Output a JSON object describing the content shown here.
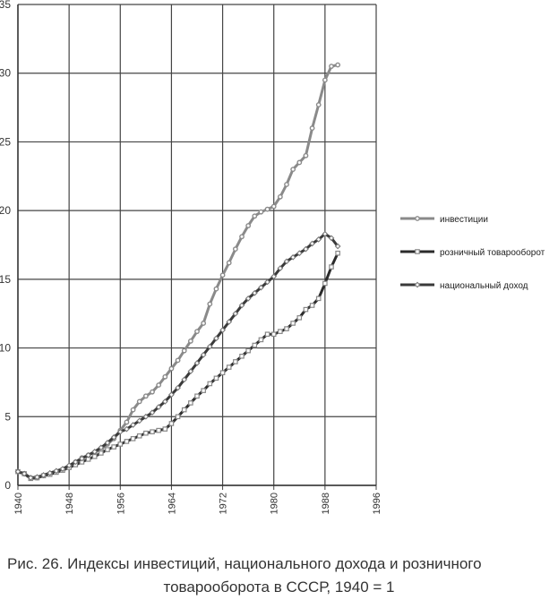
{
  "chart_data": {
    "type": "line",
    "title": "",
    "xlabel": "",
    "ylabel": "",
    "xlim": [
      1940,
      1996
    ],
    "ylim": [
      0,
      35
    ],
    "x_ticks": [
      1940,
      1948,
      1956,
      1964,
      1972,
      1980,
      1988,
      1996
    ],
    "y_ticks": [
      0,
      5,
      10,
      15,
      20,
      25,
      30,
      35
    ],
    "grid": true,
    "legend_position": "right",
    "series": [
      {
        "name": "инвестиции",
        "color": "#8a8a8a",
        "marker": "circle",
        "points": [
          [
            1940,
            1.0
          ],
          [
            1941,
            0.85
          ],
          [
            1942,
            0.55
          ],
          [
            1943,
            0.55
          ],
          [
            1944,
            0.7
          ],
          [
            1945,
            0.85
          ],
          [
            1946,
            1.0
          ],
          [
            1947,
            1.15
          ],
          [
            1948,
            1.4
          ],
          [
            1949,
            1.7
          ],
          [
            1950,
            2.0
          ],
          [
            1951,
            2.2
          ],
          [
            1952,
            2.4
          ],
          [
            1953,
            2.6
          ],
          [
            1954,
            3.0
          ],
          [
            1955,
            3.4
          ],
          [
            1956,
            4.0
          ],
          [
            1957,
            4.6
          ],
          [
            1958,
            5.5
          ],
          [
            1959,
            6.1
          ],
          [
            1960,
            6.5
          ],
          [
            1961,
            6.8
          ],
          [
            1962,
            7.3
          ],
          [
            1963,
            7.9
          ],
          [
            1964,
            8.5
          ],
          [
            1965,
            9.1
          ],
          [
            1966,
            9.8
          ],
          [
            1967,
            10.5
          ],
          [
            1968,
            11.2
          ],
          [
            1969,
            11.8
          ],
          [
            1970,
            13.2
          ],
          [
            1971,
            14.3
          ],
          [
            1972,
            15.3
          ],
          [
            1973,
            16.2
          ],
          [
            1974,
            17.2
          ],
          [
            1975,
            18.1
          ],
          [
            1976,
            18.9
          ],
          [
            1977,
            19.6
          ],
          [
            1978,
            19.9
          ],
          [
            1979,
            20.1
          ],
          [
            1980,
            20.3
          ],
          [
            1981,
            21.0
          ],
          [
            1982,
            21.9
          ],
          [
            1983,
            23.0
          ],
          [
            1984,
            23.5
          ],
          [
            1985,
            24.0
          ],
          [
            1986,
            26.0
          ],
          [
            1987,
            27.7
          ],
          [
            1988,
            29.5
          ],
          [
            1989,
            30.5
          ],
          [
            1990,
            30.6
          ]
        ]
      },
      {
        "name": "розничный товарооборот",
        "color": "#2b2b2b",
        "marker": "square",
        "points": [
          [
            1940,
            1.0
          ],
          [
            1941,
            0.85
          ],
          [
            1942,
            0.5
          ],
          [
            1943,
            0.55
          ],
          [
            1944,
            0.7
          ],
          [
            1945,
            0.8
          ],
          [
            1946,
            0.95
          ],
          [
            1947,
            1.1
          ],
          [
            1948,
            1.3
          ],
          [
            1949,
            1.5
          ],
          [
            1950,
            1.7
          ],
          [
            1951,
            1.9
          ],
          [
            1952,
            2.1
          ],
          [
            1953,
            2.35
          ],
          [
            1954,
            2.6
          ],
          [
            1955,
            2.8
          ],
          [
            1956,
            3.0
          ],
          [
            1957,
            3.2
          ],
          [
            1958,
            3.4
          ],
          [
            1959,
            3.6
          ],
          [
            1960,
            3.8
          ],
          [
            1961,
            3.9
          ],
          [
            1962,
            4.0
          ],
          [
            1963,
            4.1
          ],
          [
            1964,
            4.5
          ],
          [
            1965,
            5.0
          ],
          [
            1966,
            5.5
          ],
          [
            1967,
            6.0
          ],
          [
            1968,
            6.5
          ],
          [
            1969,
            6.9
          ],
          [
            1970,
            7.4
          ],
          [
            1971,
            7.8
          ],
          [
            1972,
            8.2
          ],
          [
            1973,
            8.6
          ],
          [
            1974,
            9.0
          ],
          [
            1975,
            9.4
          ],
          [
            1976,
            9.8
          ],
          [
            1977,
            10.2
          ],
          [
            1978,
            10.6
          ],
          [
            1979,
            11.0
          ],
          [
            1980,
            11.0
          ],
          [
            1981,
            11.2
          ],
          [
            1982,
            11.4
          ],
          [
            1983,
            11.8
          ],
          [
            1984,
            12.2
          ],
          [
            1985,
            12.8
          ],
          [
            1986,
            13.1
          ],
          [
            1987,
            13.6
          ],
          [
            1988,
            14.7
          ],
          [
            1989,
            15.9
          ],
          [
            1990,
            16.9
          ]
        ]
      },
      {
        "name": "национальный доход",
        "color": "#3a3a3a",
        "marker": "diamond",
        "points": [
          [
            1940,
            1.0
          ],
          [
            1941,
            0.85
          ],
          [
            1942,
            0.55
          ],
          [
            1943,
            0.6
          ],
          [
            1944,
            0.75
          ],
          [
            1945,
            0.9
          ],
          [
            1946,
            1.05
          ],
          [
            1947,
            1.2
          ],
          [
            1948,
            1.45
          ],
          [
            1949,
            1.7
          ],
          [
            1950,
            1.95
          ],
          [
            1951,
            2.2
          ],
          [
            1952,
            2.45
          ],
          [
            1953,
            2.75
          ],
          [
            1954,
            3.1
          ],
          [
            1955,
            3.5
          ],
          [
            1956,
            3.9
          ],
          [
            1957,
            4.1
          ],
          [
            1958,
            4.4
          ],
          [
            1959,
            4.7
          ],
          [
            1960,
            5.0
          ],
          [
            1961,
            5.3
          ],
          [
            1962,
            5.7
          ],
          [
            1963,
            6.1
          ],
          [
            1964,
            6.6
          ],
          [
            1965,
            7.1
          ],
          [
            1966,
            7.7
          ],
          [
            1967,
            8.3
          ],
          [
            1968,
            8.9
          ],
          [
            1969,
            9.5
          ],
          [
            1970,
            10.1
          ],
          [
            1971,
            10.7
          ],
          [
            1972,
            11.3
          ],
          [
            1973,
            11.9
          ],
          [
            1974,
            12.5
          ],
          [
            1975,
            13.1
          ],
          [
            1976,
            13.6
          ],
          [
            1977,
            14.0
          ],
          [
            1978,
            14.4
          ],
          [
            1979,
            14.8
          ],
          [
            1980,
            15.2
          ],
          [
            1981,
            15.8
          ],
          [
            1982,
            16.3
          ],
          [
            1983,
            16.6
          ],
          [
            1984,
            16.9
          ],
          [
            1985,
            17.2
          ],
          [
            1986,
            17.6
          ],
          [
            1987,
            17.9
          ],
          [
            1988,
            18.3
          ],
          [
            1989,
            18.0
          ],
          [
            1990,
            17.4
          ]
        ]
      }
    ]
  },
  "caption": {
    "line1": "Рис. 26. Индексы инвестиций, национального дохода и розничного",
    "line2": "товарооборота в СССР, 1940 = 1"
  }
}
